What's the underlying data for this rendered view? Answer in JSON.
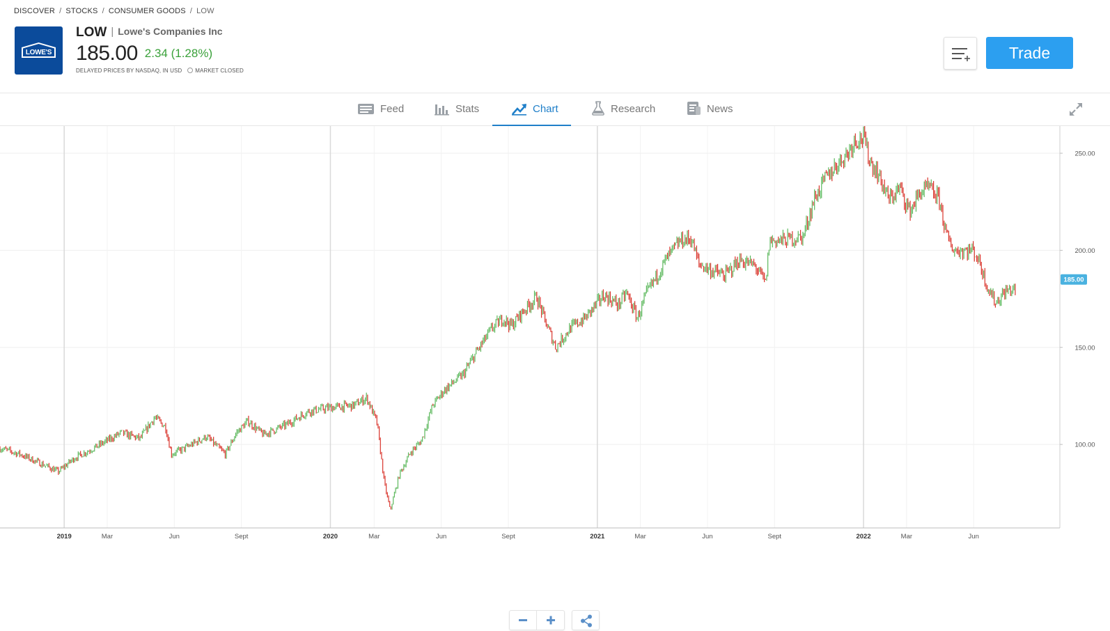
{
  "breadcrumb": {
    "items": [
      "DISCOVER",
      "STOCKS",
      "CONSUMER GOODS"
    ],
    "current": "LOW",
    "separator": "/"
  },
  "logo": {
    "text": "LOWE'S",
    "color": "#0b4b9b"
  },
  "instrument": {
    "symbol": "LOW",
    "divider": "|",
    "company": "Lowe's Companies Inc",
    "price": "185.00",
    "change": "2.34 (1.28%)",
    "change_color": "#3aa13a",
    "price_source": "DELAYED PRICES BY NASDAQ, IN USD",
    "market_status": "MARKET CLOSED"
  },
  "actions": {
    "watchlist_icon": "add-to-list-icon",
    "trade_label": "Trade",
    "trade_color": "#2c9ff0"
  },
  "tabs": [
    {
      "label": "Feed",
      "icon": "feed-icon",
      "active": false
    },
    {
      "label": "Stats",
      "icon": "stats-icon",
      "active": false
    },
    {
      "label": "Chart",
      "icon": "chart-icon",
      "active": true
    },
    {
      "label": "Research",
      "icon": "flask-icon",
      "active": false
    },
    {
      "label": "News",
      "icon": "news-icon",
      "active": false
    }
  ],
  "accent_color": "#1f7fc9",
  "chart_data": {
    "type": "line",
    "style": "ohlc",
    "symbol": "LOW",
    "up_color": "#5cb85c",
    "down_color": "#d9342b",
    "current_value": 185.0,
    "current_label": "185.00",
    "y_ticks": [
      100,
      150,
      200,
      250
    ],
    "y_tick_labels": [
      "100.00",
      "150.00",
      "200.00",
      "250.00"
    ],
    "ylim": [
      57,
      264
    ],
    "x_tick_labels": [
      "2019",
      "Mar",
      "Jun",
      "Sept",
      "2020",
      "Mar",
      "Jun",
      "Sept",
      "2021",
      "Mar",
      "Jun",
      "Sept",
      "2022",
      "Mar",
      "Jun"
    ],
    "x_tick_dates": [
      "2019-01-01",
      "2019-03-01",
      "2019-06-01",
      "2019-09-01",
      "2020-01-01",
      "2020-03-01",
      "2020-06-01",
      "2020-09-01",
      "2021-01-01",
      "2021-03-01",
      "2021-06-01",
      "2021-09-01",
      "2022-01-01",
      "2022-03-01",
      "2022-06-01"
    ],
    "xlim": [
      "2018-10-05",
      "2022-08-20"
    ],
    "grid": true,
    "series": [
      {
        "x": [
          "2018-10-05",
          "2018-11-01",
          "2018-12-01",
          "2018-12-24",
          "2019-01-15",
          "2019-02-15",
          "2019-03-20",
          "2019-04-15",
          "2019-05-05",
          "2019-05-20",
          "2019-05-28",
          "2019-06-15",
          "2019-07-15",
          "2019-08-10",
          "2019-08-25",
          "2019-09-10",
          "2019-10-01",
          "2019-11-01",
          "2019-12-01",
          "2020-01-01",
          "2020-02-01",
          "2020-02-20",
          "2020-03-05",
          "2020-03-15",
          "2020-03-23",
          "2020-04-05",
          "2020-04-20",
          "2020-05-05",
          "2020-05-20",
          "2020-06-05",
          "2020-07-01",
          "2020-07-20",
          "2020-08-10",
          "2020-08-25",
          "2020-09-05",
          "2020-09-20",
          "2020-10-10",
          "2020-10-20",
          "2020-11-05",
          "2020-11-25",
          "2020-12-15",
          "2021-01-10",
          "2021-01-30",
          "2021-02-10",
          "2021-02-25",
          "2021-03-10",
          "2021-04-05",
          "2021-04-25",
          "2021-05-10",
          "2021-05-20",
          "2021-06-10",
          "2021-06-25",
          "2021-07-15",
          "2021-08-05",
          "2021-08-20",
          "2021-08-25",
          "2021-09-10",
          "2021-10-10",
          "2021-10-25",
          "2021-11-10",
          "2021-11-25",
          "2021-12-10",
          "2021-12-20",
          "2022-01-01",
          "2022-01-10",
          "2022-01-20",
          "2022-02-05",
          "2022-02-20",
          "2022-03-05",
          "2022-03-20",
          "2022-04-01",
          "2022-04-15",
          "2022-04-25",
          "2022-05-05",
          "2022-05-20",
          "2022-06-01",
          "2022-06-10",
          "2022-06-18",
          "2022-07-01",
          "2022-07-15",
          "2022-07-29"
        ],
        "values": [
          98,
          95,
          90,
          86,
          93,
          99,
          106,
          103,
          114,
          109,
          95,
          98,
          104,
          95,
          106,
          112,
          105,
          110,
          117,
          119,
          120,
          124,
          111,
          80,
          66,
          85,
          96,
          102,
          120,
          128,
          136,
          148,
          160,
          165,
          161,
          168,
          176,
          165,
          150,
          160,
          165,
          177,
          172,
          178,
          165,
          178,
          195,
          205,
          206,
          193,
          189,
          187,
          195,
          192,
          183,
          205,
          205,
          207,
          226,
          237,
          244,
          250,
          257,
          258,
          246,
          240,
          226,
          232,
          220,
          230,
          232,
          226,
          207,
          200,
          200,
          200,
          193,
          183,
          173,
          179,
          180
        ]
      }
    ]
  }
}
